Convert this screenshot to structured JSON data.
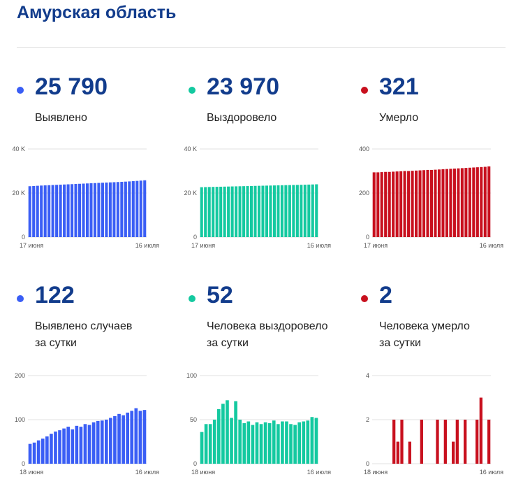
{
  "page": {
    "title": "Амурская область"
  },
  "colors": {
    "title": "#123c8c",
    "blue": "#3a5ef5",
    "green": "#14c9a0",
    "red": "#c8101e"
  },
  "panels": [
    {
      "id": "detected",
      "value": "25 790",
      "label": [
        "Выявлено"
      ],
      "color": "#3a5ef5",
      "chart_index": 0
    },
    {
      "id": "recovered",
      "value": "23 970",
      "label": [
        "Выздоровело"
      ],
      "color": "#14c9a0",
      "chart_index": 1
    },
    {
      "id": "died",
      "value": "321",
      "label": [
        "Умерло"
      ],
      "color": "#c8101e",
      "chart_index": 2
    },
    {
      "id": "detected-daily",
      "value": "122",
      "label": [
        "Выявлено случаев",
        "за сутки"
      ],
      "color": "#3a5ef5",
      "chart_index": 3
    },
    {
      "id": "recovered-daily",
      "value": "52",
      "label": [
        "Человека выздоровело",
        "за сутки"
      ],
      "color": "#14c9a0",
      "chart_index": 4
    },
    {
      "id": "died-daily",
      "value": "2",
      "label": [
        "Человека умерло",
        "за сутки"
      ],
      "color": "#c8101e",
      "chart_index": 5
    }
  ],
  "chart_data": [
    {
      "type": "bar",
      "title": "",
      "xlabel": "",
      "ylabel": "",
      "ylim": [
        0,
        40000
      ],
      "yticks": [
        "0",
        "20 K",
        "40 K"
      ],
      "ytick_values": [
        0,
        20000,
        40000
      ],
      "x_start_label": "17 июня",
      "x_end_label": "16 июля",
      "grid": true,
      "color": "#3a5ef5",
      "values": [
        23100,
        23200,
        23300,
        23400,
        23480,
        23560,
        23640,
        23720,
        23800,
        23880,
        23960,
        24040,
        24120,
        24200,
        24280,
        24360,
        24440,
        24520,
        24600,
        24680,
        24760,
        24840,
        24920,
        25000,
        25090,
        25180,
        25280,
        25390,
        25510,
        25650,
        25790
      ]
    },
    {
      "type": "bar",
      "title": "",
      "xlabel": "",
      "ylabel": "",
      "ylim": [
        0,
        40000
      ],
      "yticks": [
        "0",
        "20 K",
        "40 K"
      ],
      "ytick_values": [
        0,
        20000,
        40000
      ],
      "x_start_label": "17 июня",
      "x_end_label": "16 июля",
      "grid": true,
      "color": "#14c9a0",
      "values": [
        22650,
        22700,
        22750,
        22790,
        22830,
        22870,
        22910,
        22950,
        23000,
        23040,
        23080,
        23120,
        23160,
        23200,
        23250,
        23290,
        23330,
        23370,
        23410,
        23450,
        23500,
        23540,
        23580,
        23620,
        23660,
        23700,
        23740,
        23790,
        23840,
        23900,
        23970
      ]
    },
    {
      "type": "bar",
      "title": "",
      "xlabel": "",
      "ylabel": "",
      "ylim": [
        0,
        400
      ],
      "yticks": [
        "0",
        "200",
        "400"
      ],
      "ytick_values": [
        0,
        200,
        400
      ],
      "x_start_label": "17 июня",
      "x_end_label": "16 июля",
      "grid": true,
      "color": "#c8101e",
      "values": [
        294,
        294,
        295,
        296,
        296,
        297,
        298,
        299,
        300,
        300,
        301,
        302,
        303,
        304,
        305,
        305,
        306,
        307,
        308,
        309,
        310,
        311,
        312,
        313,
        314,
        315,
        316,
        317,
        318,
        319,
        321
      ]
    },
    {
      "type": "bar",
      "title": "",
      "xlabel": "",
      "ylabel": "",
      "ylim": [
        0,
        200
      ],
      "yticks": [
        "0",
        "100",
        "200"
      ],
      "ytick_values": [
        0,
        100,
        200
      ],
      "x_start_label": "18 июня",
      "x_end_label": "16 июля",
      "grid": true,
      "color": "#3a5ef5",
      "values": [
        45,
        48,
        53,
        57,
        62,
        68,
        73,
        76,
        80,
        84,
        78,
        86,
        84,
        90,
        88,
        94,
        97,
        98,
        100,
        104,
        108,
        113,
        110,
        116,
        120,
        126,
        120,
        122
      ]
    },
    {
      "type": "bar",
      "title": "",
      "xlabel": "",
      "ylabel": "",
      "ylim": [
        0,
        100
      ],
      "yticks": [
        "0",
        "50",
        "100"
      ],
      "ytick_values": [
        0,
        50,
        100
      ],
      "x_start_label": "18 июня",
      "x_end_label": "16 июля",
      "grid": true,
      "color": "#14c9a0",
      "values": [
        36,
        45,
        45,
        50,
        62,
        68,
        72,
        52,
        71,
        50,
        46,
        48,
        44,
        47,
        45,
        47,
        46,
        49,
        45,
        48,
        48,
        45,
        44,
        47,
        48,
        49,
        53,
        52
      ]
    },
    {
      "type": "bar",
      "title": "",
      "xlabel": "",
      "ylabel": "",
      "ylim": [
        0,
        4
      ],
      "yticks": [
        "0",
        "2",
        "4"
      ],
      "ytick_values": [
        0,
        2,
        4
      ],
      "x_start_label": "18 июня",
      "x_end_label": "16 июля",
      "grid": true,
      "color": "#c8101e",
      "values": [
        0,
        0,
        0,
        0,
        0,
        2,
        1,
        2,
        0,
        1,
        0,
        0,
        2,
        0,
        0,
        0,
        2,
        0,
        2,
        0,
        1,
        2,
        0,
        2,
        0,
        0,
        2,
        3,
        0,
        2
      ]
    }
  ]
}
